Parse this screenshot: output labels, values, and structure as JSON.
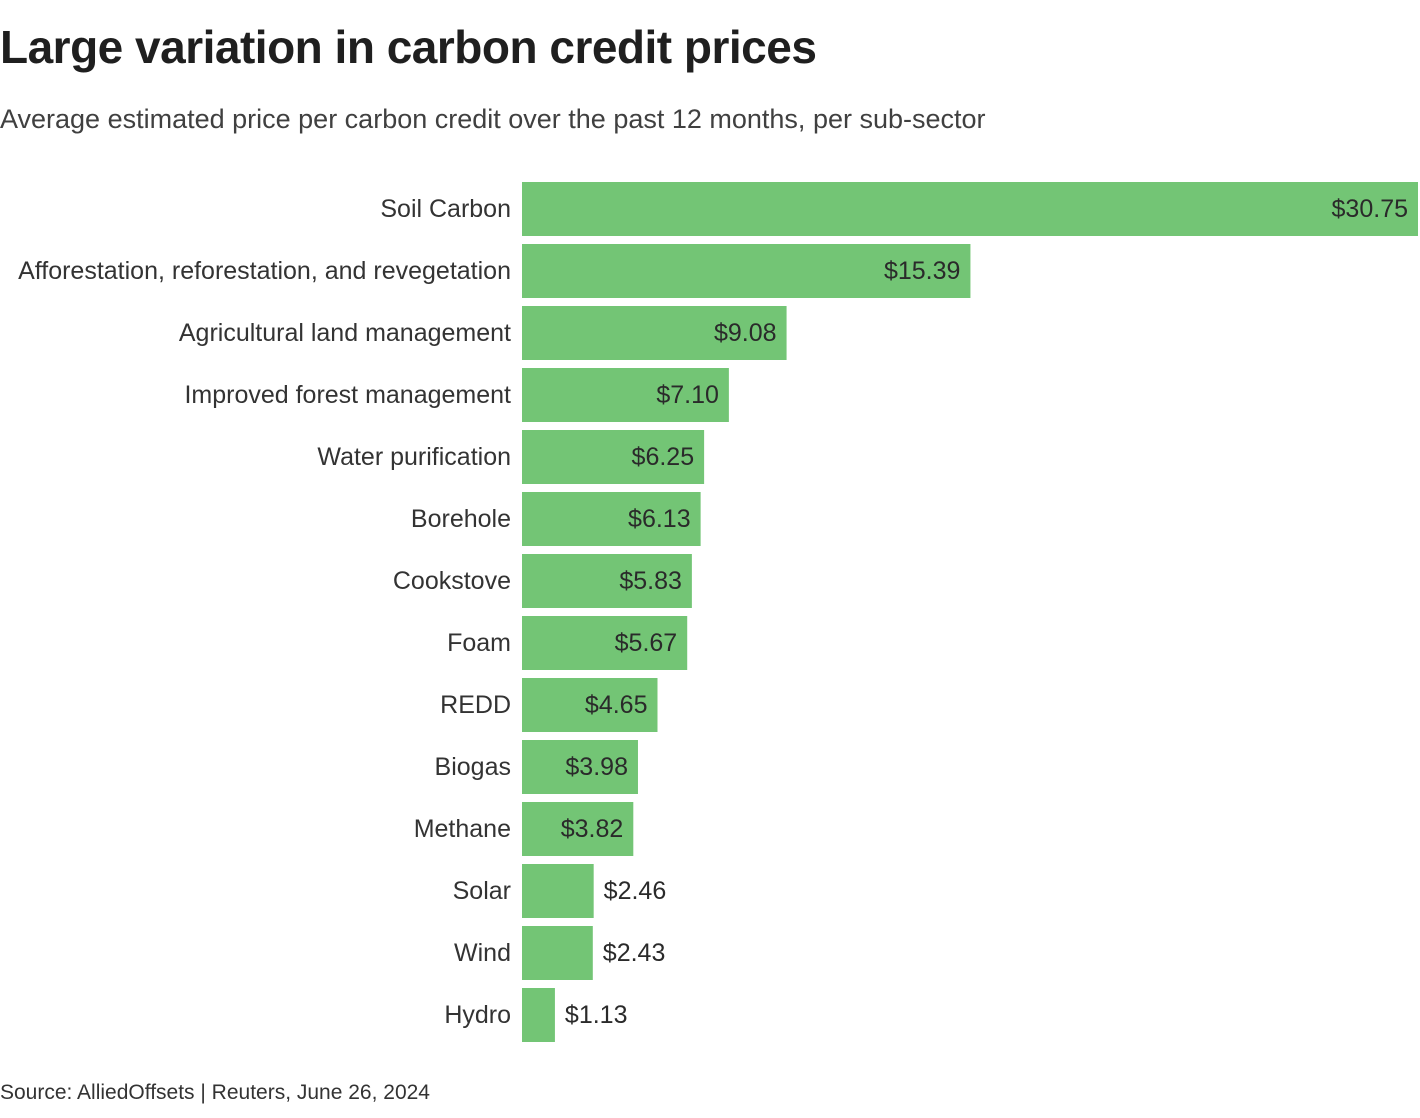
{
  "chart_data": {
    "type": "bar",
    "orientation": "horizontal",
    "title": "Large variation in carbon credit prices",
    "subtitle": "Average estimated price per carbon credit over the past 12 months, per sub-sector",
    "categories": [
      "Soil Carbon",
      "Afforestation, reforestation, and revegetation",
      "Agricultural land management",
      "Improved forest management",
      "Water purification",
      "Borehole",
      "Cookstove",
      "Foam",
      "REDD",
      "Biogas",
      "Methane",
      "Solar",
      "Wind",
      "Hydro"
    ],
    "values": [
      30.75,
      15.39,
      9.08,
      7.1,
      6.25,
      6.13,
      5.83,
      5.67,
      4.65,
      3.98,
      3.82,
      2.46,
      2.43,
      1.13
    ],
    "value_labels": [
      "$30.75",
      "$15.39",
      "$9.08",
      "$7.10",
      "$6.25",
      "$6.13",
      "$5.83",
      "$5.67",
      "$4.65",
      "$3.98",
      "$3.82",
      "$2.46",
      "$2.43",
      "$1.13"
    ],
    "xlim": [
      0,
      30.75
    ],
    "grid": false,
    "legend": "none",
    "bar_color": "#73c575"
  },
  "footer": {
    "source": "Source: AlliedOffsets | Reuters, June 26, 2024"
  }
}
